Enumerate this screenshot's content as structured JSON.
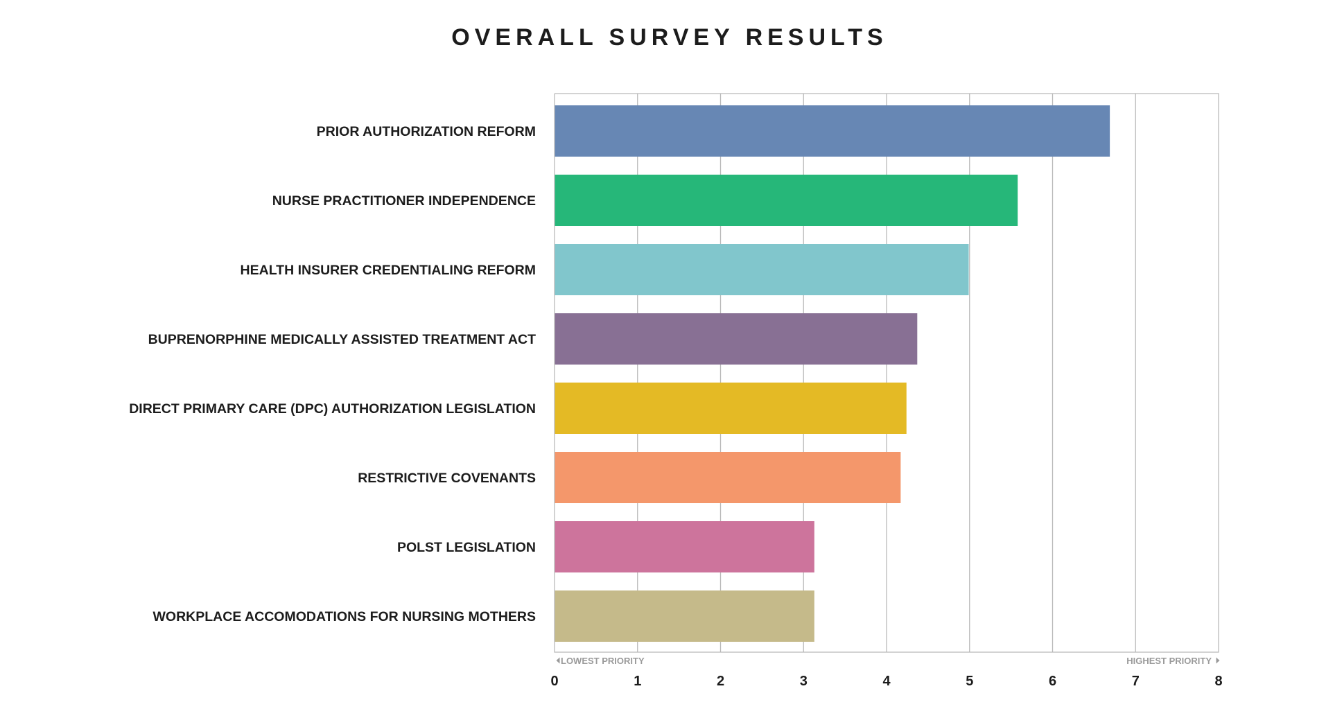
{
  "chart_data": {
    "type": "bar",
    "orientation": "horizontal",
    "title": "OVERALL SURVEY RESULTS",
    "categories": [
      "PRIOR AUTHORIZATION REFORM",
      "NURSE PRACTITIONER INDEPENDENCE",
      "HEALTH INSURER CREDENTIALING REFORM",
      "BUPRENORPHINE MEDICALLY ASSISTED TREATMENT ACT",
      "DIRECT PRIMARY CARE (DPC) AUTHORIZATION LEGISLATION",
      "RESTRICTIVE COVENANTS",
      "POLST LEGISLATION",
      "WORKPLACE ACCOMODATIONS FOR NURSING MOTHERS"
    ],
    "values": [
      6.69,
      5.58,
      4.99,
      4.37,
      4.24,
      4.17,
      3.13,
      3.13
    ],
    "colors": [
      "#6787b4",
      "#26b779",
      "#81c6cc",
      "#887094",
      "#e4ba25",
      "#f4976b",
      "#cd749c",
      "#c5ba8a"
    ],
    "xlim": [
      0,
      8
    ],
    "xticks": [
      "0",
      "1",
      "2",
      "3",
      "4",
      "5",
      "6",
      "7",
      "8"
    ],
    "xlabel_low": "LOWEST PRIORITY",
    "xlabel_high": "HIGHEST PRIORITY",
    "grid": true
  }
}
